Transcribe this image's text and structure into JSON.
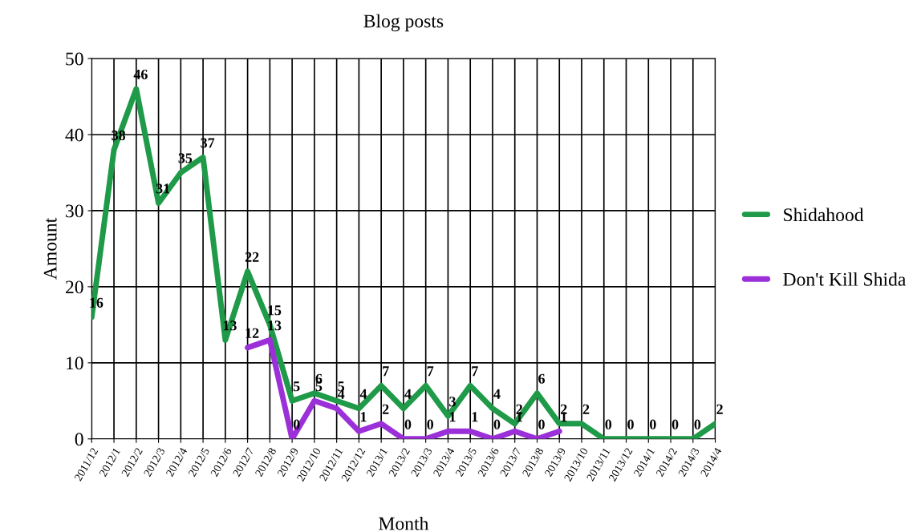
{
  "chart_data": {
    "type": "line",
    "title": "Blog posts",
    "xlabel": "Month",
    "ylabel": "Amount",
    "categories": [
      "2011/12",
      "2012/1",
      "2012/2",
      "2012/3",
      "2012/4",
      "2012/5",
      "2012/6",
      "2012/7",
      "2012/8",
      "2012/9",
      "2012/10",
      "2012/11",
      "2012/12",
      "2013/1",
      "2013/2",
      "2013/3",
      "2013/4",
      "2013/5",
      "2013/6",
      "2013/7",
      "2013/8",
      "2013/9",
      "2013/10",
      "2013/11",
      "2013/12",
      "2014/1",
      "2014/2",
      "2014/3",
      "2014/4"
    ],
    "series": [
      {
        "name": "Shidahood",
        "color": "#1e9a48",
        "values": [
          16,
          38,
          46,
          31,
          35,
          37,
          13,
          22,
          15,
          5,
          6,
          5,
          4,
          7,
          4,
          7,
          3,
          7,
          4,
          2,
          6,
          2,
          2,
          0,
          0,
          0,
          0,
          0,
          2
        ]
      },
      {
        "name": "Don't Kill Shida",
        "color": "#9b30d9",
        "values": [
          null,
          null,
          null,
          null,
          null,
          null,
          null,
          12,
          13,
          0,
          5,
          4,
          1,
          2,
          0,
          0,
          1,
          1,
          0,
          1,
          0,
          1,
          null,
          null,
          null,
          null,
          null,
          null,
          null
        ]
      }
    ],
    "ylim": [
      0,
      50
    ],
    "yticks": [
      0,
      10,
      20,
      30,
      40,
      50
    ],
    "grid": true,
    "legend": "right",
    "data_labels": true
  }
}
